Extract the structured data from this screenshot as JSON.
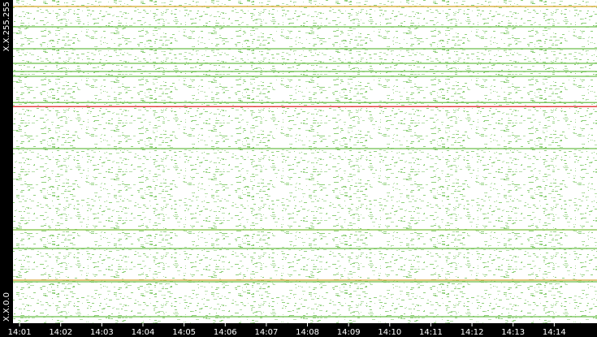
{
  "chart_data": {
    "type": "hlines",
    "xticks": [
      {
        "value": 1,
        "label": "14:01"
      },
      {
        "value": 2,
        "label": "14:02"
      },
      {
        "value": 3,
        "label": "14:03"
      },
      {
        "value": 4,
        "label": "14:04"
      },
      {
        "value": 5,
        "label": "14:05"
      },
      {
        "value": 6,
        "label": "14:06"
      },
      {
        "value": 7,
        "label": "14:07"
      },
      {
        "value": 8,
        "label": "14:08"
      },
      {
        "value": 9,
        "label": "14:09"
      },
      {
        "value": 10,
        "label": "14:10"
      },
      {
        "value": 11,
        "label": "14:11"
      },
      {
        "value": 12,
        "label": "14:12"
      },
      {
        "value": 13,
        "label": "14:13"
      },
      {
        "value": 14,
        "label": "14:14"
      }
    ],
    "xlim": [
      0.84,
      15.04
    ],
    "ylim": [
      0,
      65535
    ],
    "yticks": [
      {
        "value": 0,
        "label": "X.X.0.0"
      },
      {
        "value": 65535,
        "label": "X.X.255.255"
      }
    ],
    "lines": [
      {
        "y": 64218,
        "color": "#d4a520"
      },
      {
        "y": 60101,
        "color": "#6cbf4a"
      },
      {
        "y": 55656,
        "color": "#6cbf4a"
      },
      {
        "y": 52692,
        "color": "#6cbf4a"
      },
      {
        "y": 51045,
        "color": "#6cbf4a"
      },
      {
        "y": 50057,
        "color": "#6cbf4a"
      },
      {
        "y": 44746,
        "color": "#6cbf4a"
      },
      {
        "y": 43922,
        "color": "#e02020"
      },
      {
        "y": 35402,
        "color": "#6cbf4a"
      },
      {
        "y": 18936,
        "color": "#7cbf3a"
      },
      {
        "y": 15149,
        "color": "#6cbf4a"
      },
      {
        "y": 8727,
        "color": "#d8a030"
      },
      {
        "y": 8398,
        "color": "#6cbf4a"
      },
      {
        "y": 1317,
        "color": "#6cbf4a"
      }
    ]
  }
}
